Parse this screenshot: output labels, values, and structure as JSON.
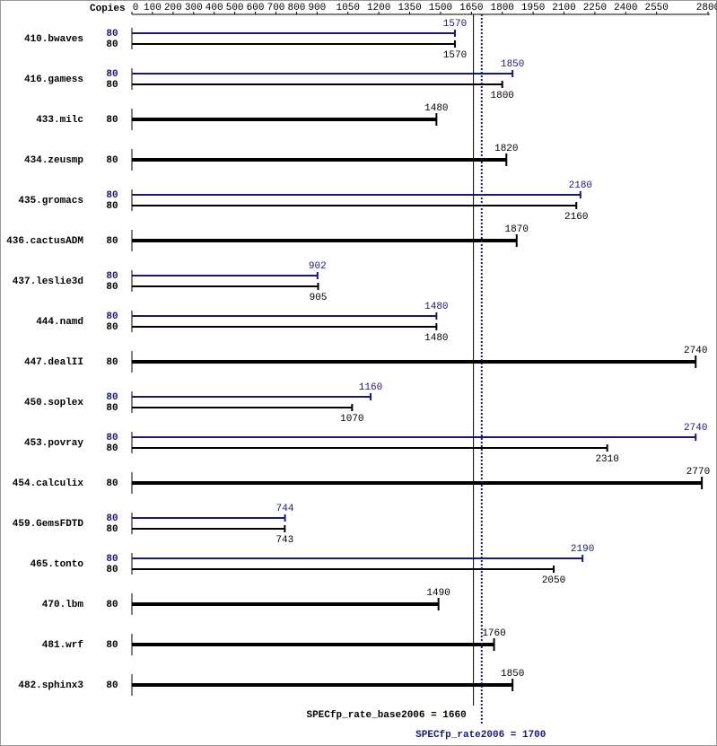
{
  "chart_data": {
    "type": "spec-bar",
    "x_axis_label": "Copies",
    "xlim": [
      0,
      2800
    ],
    "xticks": [
      0,
      100,
      200,
      300,
      400,
      500,
      600,
      700,
      800,
      900,
      1050,
      1200,
      1350,
      1500,
      1650,
      1800,
      1950,
      2100,
      2250,
      2400,
      2550,
      2800
    ],
    "categories": [
      "410.bwaves",
      "416.gamess",
      "433.milc",
      "434.zeusmp",
      "435.gromacs",
      "436.cactusADM",
      "437.leslie3d",
      "444.namd",
      "447.dealII",
      "450.soplex",
      "453.povray",
      "454.calculix",
      "459.GemsFDTD",
      "465.tonto",
      "470.lbm",
      "481.wrf",
      "482.sphinx3"
    ],
    "series": [
      {
        "color": "#191970",
        "copies": [
          80,
          80,
          null,
          null,
          80,
          null,
          80,
          80,
          null,
          80,
          80,
          null,
          80,
          80,
          null,
          null,
          null
        ],
        "values": [
          1570,
          1850,
          null,
          null,
          2180,
          null,
          902,
          1480,
          null,
          1160,
          2740,
          null,
          744,
          2190,
          null,
          null,
          null
        ]
      },
      {
        "color": "#000000",
        "copies": [
          80,
          80,
          80,
          80,
          80,
          80,
          80,
          80,
          80,
          80,
          80,
          80,
          80,
          80,
          80,
          80,
          80
        ],
        "values": [
          1570,
          1800,
          1480,
          1820,
          2160,
          1870,
          905,
          1480,
          2740,
          1070,
          2310,
          2770,
          743,
          2050,
          1490,
          1760,
          1850
        ]
      }
    ],
    "reference_lines": [
      {
        "label": "SPECfp_rate_base2006 = 1660",
        "value": 1660,
        "color": "#000000",
        "dashed": false
      },
      {
        "label": "SPECfp_rate2006 = 1700",
        "value": 1700,
        "color": "#191970",
        "dashed": true
      }
    ]
  }
}
